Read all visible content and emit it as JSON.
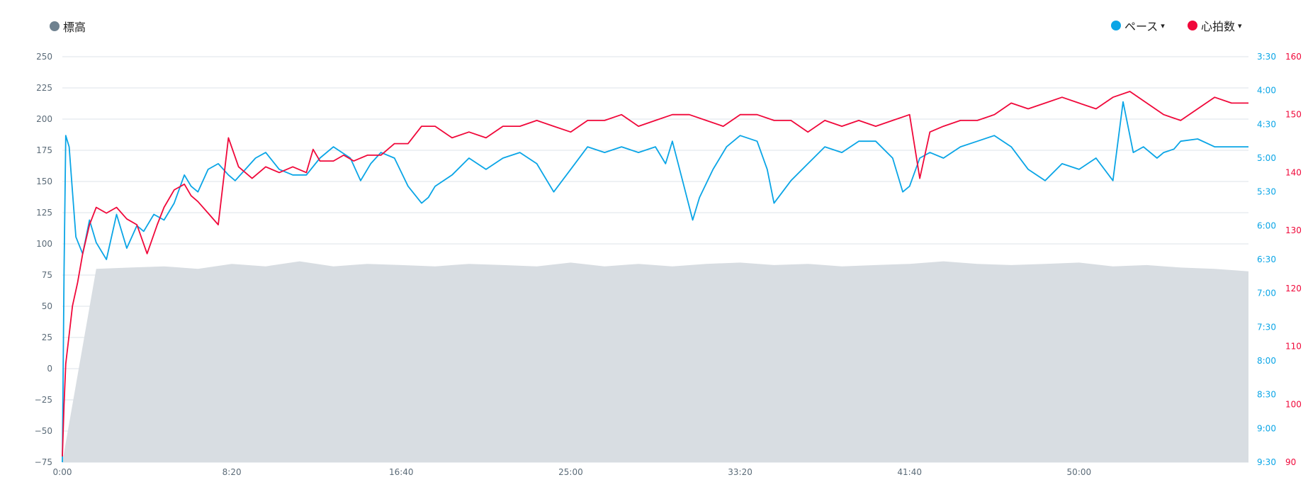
{
  "legend": {
    "elevation": {
      "label": "標高",
      "color": "#6f8290"
    },
    "pace": {
      "label": "ペース",
      "color": "#0aa5e6"
    },
    "heart_rate": {
      "label": "心拍数",
      "color": "#f0083a"
    },
    "caret": "▾"
  },
  "chart_data": {
    "type": "line",
    "x_axis": {
      "unit": "elapsed_seconds",
      "range": [
        0,
        3500
      ],
      "tick_labels": [
        "0:00",
        "8:20",
        "16:40",
        "25:00",
        "33:20",
        "41:40",
        "50:00"
      ],
      "tick_values": [
        0,
        500,
        1000,
        1500,
        2000,
        2500,
        3000
      ]
    },
    "y_axes": {
      "elevation": {
        "range": [
          -75,
          250
        ],
        "ticks": [
          250,
          225,
          200,
          175,
          150,
          125,
          100,
          75,
          50,
          25,
          0,
          -25,
          -50,
          -75
        ]
      },
      "pace": {
        "range_seconds_per_km": [
          210,
          570
        ],
        "tick_labels": [
          "3:30",
          "4:00",
          "4:30",
          "5:00",
          "5:30",
          "6:00",
          "6:30",
          "7:00",
          "7:30",
          "8:00",
          "8:30",
          "9:00",
          "9:30"
        ]
      },
      "heart_rate": {
        "range": [
          90,
          160
        ],
        "ticks": [
          160,
          150,
          140,
          130,
          120,
          110,
          100,
          90
        ]
      }
    },
    "grid": true,
    "legend_position": "top",
    "series": [
      {
        "name": "標高",
        "type": "area",
        "axis": "elevation",
        "color": "#6f8290",
        "x": [
          0,
          100,
          200,
          300,
          400,
          500,
          600,
          700,
          800,
          900,
          1000,
          1100,
          1200,
          1300,
          1400,
          1500,
          1600,
          1700,
          1800,
          1900,
          2000,
          2100,
          2200,
          2300,
          2400,
          2500,
          2600,
          2700,
          2800,
          2900,
          3000,
          3100,
          3200,
          3300,
          3400,
          3500
        ],
        "values": [
          -75,
          80,
          81,
          82,
          80,
          84,
          82,
          86,
          82,
          84,
          83,
          82,
          84,
          83,
          82,
          85,
          82,
          84,
          82,
          84,
          85,
          83,
          84,
          82,
          83,
          84,
          86,
          84,
          83,
          84,
          85,
          82,
          83,
          81,
          80,
          78
        ]
      },
      {
        "name": "ペース",
        "type": "line",
        "axis": "pace",
        "color": "#0aa5e6",
        "x": [
          0,
          5,
          10,
          20,
          30,
          40,
          60,
          80,
          100,
          130,
          160,
          190,
          220,
          240,
          270,
          300,
          330,
          360,
          380,
          400,
          430,
          460,
          490,
          510,
          540,
          570,
          600,
          640,
          680,
          720,
          760,
          800,
          850,
          880,
          910,
          940,
          980,
          1020,
          1060,
          1080,
          1100,
          1150,
          1200,
          1250,
          1300,
          1350,
          1400,
          1450,
          1500,
          1550,
          1600,
          1650,
          1700,
          1750,
          1780,
          1800,
          1830,
          1860,
          1880,
          1920,
          1960,
          2000,
          2050,
          2080,
          2100,
          2150,
          2200,
          2250,
          2300,
          2350,
          2400,
          2450,
          2480,
          2500,
          2530,
          2560,
          2600,
          2650,
          2700,
          2750,
          2800,
          2850,
          2900,
          2950,
          3000,
          3050,
          3100,
          3130,
          3160,
          3190,
          3230,
          3250,
          3280,
          3300,
          3350,
          3400,
          3450,
          3500
        ],
        "values": [
          570,
          400,
          280,
          290,
          330,
          370,
          385,
          355,
          375,
          390,
          350,
          380,
          360,
          365,
          350,
          355,
          340,
          315,
          325,
          330,
          310,
          305,
          315,
          320,
          310,
          300,
          295,
          310,
          315,
          315,
          300,
          290,
          300,
          320,
          305,
          295,
          300,
          325,
          340,
          335,
          325,
          315,
          300,
          310,
          300,
          295,
          305,
          330,
          310,
          290,
          295,
          290,
          295,
          290,
          305,
          285,
          320,
          355,
          335,
          310,
          290,
          280,
          285,
          310,
          340,
          320,
          305,
          290,
          295,
          285,
          285,
          300,
          330,
          325,
          300,
          295,
          300,
          290,
          285,
          280,
          290,
          310,
          320,
          305,
          310,
          300,
          320,
          250,
          295,
          290,
          300,
          295,
          292,
          285,
          283,
          290,
          290,
          290
        ]
      },
      {
        "name": "心拍数",
        "type": "line",
        "axis": "heart_rate",
        "color": "#f0083a",
        "x": [
          0,
          5,
          10,
          20,
          30,
          45,
          60,
          80,
          100,
          130,
          160,
          190,
          220,
          250,
          280,
          300,
          330,
          360,
          380,
          400,
          430,
          460,
          490,
          520,
          560,
          600,
          640,
          680,
          720,
          740,
          760,
          800,
          830,
          860,
          900,
          940,
          980,
          1020,
          1060,
          1100,
          1150,
          1200,
          1250,
          1300,
          1350,
          1400,
          1450,
          1500,
          1550,
          1600,
          1650,
          1700,
          1750,
          1800,
          1850,
          1900,
          1950,
          2000,
          2050,
          2100,
          2150,
          2200,
          2250,
          2300,
          2350,
          2400,
          2450,
          2500,
          2530,
          2560,
          2600,
          2650,
          2700,
          2750,
          2800,
          2850,
          2900,
          2950,
          3000,
          3050,
          3100,
          3150,
          3200,
          3250,
          3300,
          3350,
          3400,
          3450,
          3500
        ],
        "values": [
          91,
          100,
          107,
          112,
          117,
          121,
          126,
          131,
          134,
          133,
          134,
          132,
          131,
          126,
          131,
          134,
          137,
          138,
          136,
          135,
          133,
          131,
          146,
          141,
          139,
          141,
          140,
          141,
          140,
          144,
          142,
          142,
          143,
          142,
          143,
          143,
          145,
          145,
          148,
          148,
          146,
          147,
          146,
          148,
          148,
          149,
          148,
          147,
          149,
          149,
          150,
          148,
          149,
          150,
          150,
          149,
          148,
          150,
          150,
          149,
          149,
          147,
          149,
          148,
          149,
          148,
          149,
          150,
          139,
          147,
          148,
          149,
          149,
          150,
          152,
          151,
          152,
          153,
          152,
          151,
          153,
          154,
          152,
          150,
          149,
          151,
          153,
          152,
          152
        ]
      }
    ]
  }
}
